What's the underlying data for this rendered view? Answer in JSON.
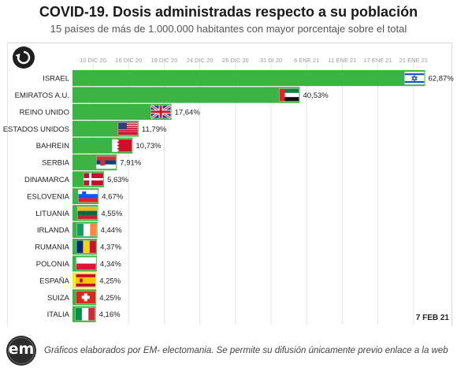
{
  "header": {
    "title": "COVID-19. Dosis administradas respecto a su población",
    "subtitle": "15 países de más de 1.000.000 habitantes con mayor porcentaje sobre el total"
  },
  "chart_data": {
    "type": "bar",
    "orientation": "horizontal",
    "title": "COVID-19. Dosis administradas respecto a su población",
    "subtitle": "15 países de más de 1.000.000 habitantes con mayor porcentaje sobre el total",
    "x_ticks": [
      "10 DIC 20",
      "16 DIC 20",
      "19 DIC 20",
      "24 DIC 20",
      "26 DIC 20",
      "31 DI 20",
      "6 ENE 21",
      "11 ENE 21",
      "17 ENE 21",
      "21 ENE 21"
    ],
    "xlim": [
      0,
      63
    ],
    "grid": true,
    "categories": [
      "ISRAEL",
      "EMIRATOS A.U.",
      "REINO UNIDO",
      "ESTADOS UNIDOS",
      "BAHREIN",
      "SERBIA",
      "DINAMARCA",
      "ESLOVENIA",
      "LITUANIA",
      "IRLANDA",
      "RUMANIA",
      "POLONIA",
      "ESPAÑA",
      "SUIZA",
      "ITALIA"
    ],
    "values": [
      62.87,
      40.53,
      17.64,
      11.79,
      10.73,
      7.91,
      5.63,
      4.67,
      4.55,
      4.44,
      4.37,
      4.34,
      4.25,
      4.25,
      4.16
    ],
    "value_labels": [
      "62,87%",
      "40,53%",
      "17,64%",
      "11,79%",
      "10,73%",
      "7,91%",
      "5,63%",
      "4,67%",
      "4,55%",
      "4,44%",
      "4,37%",
      "4,34%",
      "4,25%",
      "4,25%",
      "4,16%"
    ],
    "flags": [
      "israel-flag",
      "uae-flag",
      "uk-flag",
      "usa-flag",
      "bahrain-flag",
      "serbia-flag",
      "denmark-flag",
      "slovenia-flag",
      "lithuania-flag",
      "ireland-flag",
      "romania-flag",
      "poland-flag",
      "spain-flag",
      "switzerland-flag",
      "italy-flag"
    ],
    "bar_colors": [
      "#3cb443",
      "#3cb443",
      "#3cb443",
      "#3cb443",
      "#3cb443",
      "#3cb443",
      "#3cb443",
      "#3cb443",
      "#3cb443",
      "#3cb443",
      "#3cb443",
      "#3cb443",
      "#f6ef12",
      "#3cb443",
      "#3cb443"
    ],
    "date_label": "7 FEB 21"
  },
  "date_label": "7 FEB 21",
  "footer": {
    "logo_text": "em",
    "credit": "Gráficos elaborados por EM- electomania. Se permite su difusión únicamente previo enlace a la web"
  },
  "icons": {
    "replay": "replay-icon"
  }
}
